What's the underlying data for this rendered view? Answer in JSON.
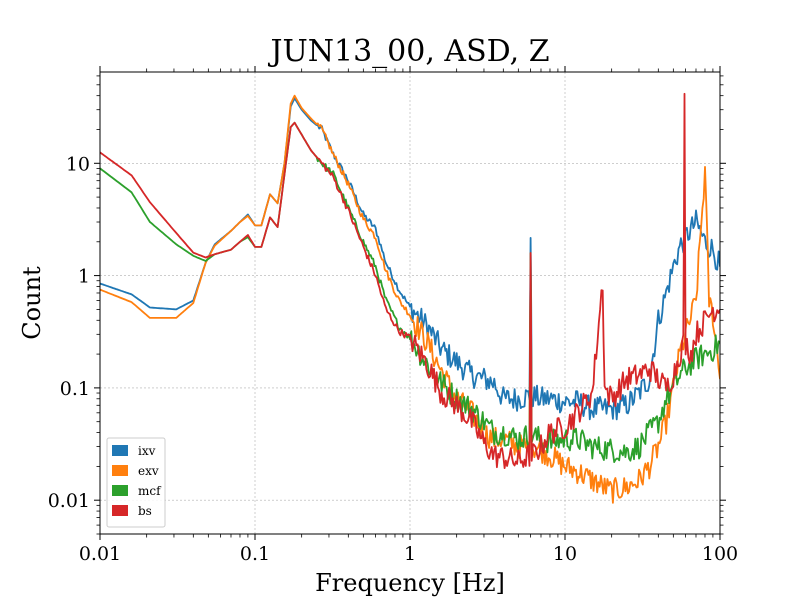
{
  "chart_data": {
    "type": "line",
    "title": "JUN13_00, ASD, Z",
    "xlabel": "Frequency [Hz]",
    "ylabel": "Count",
    "xscale": "log",
    "yscale": "log",
    "xlim": [
      0.01,
      100
    ],
    "ylim": [
      0.005,
      65
    ],
    "xticks": [
      {
        "value": 0.01,
        "label": "0.01"
      },
      {
        "value": 0.1,
        "label": "0.1"
      },
      {
        "value": 1,
        "label": "1"
      },
      {
        "value": 10,
        "label": "10"
      },
      {
        "value": 100,
        "label": "100"
      }
    ],
    "yticks": [
      {
        "value": 0.01,
        "label": "0.01"
      },
      {
        "value": 0.1,
        "label": "0.1"
      },
      {
        "value": 1,
        "label": "1"
      },
      {
        "value": 10,
        "label": "10"
      }
    ],
    "grid": true,
    "legend_position": "lower-left",
    "series": [
      {
        "name": "ixv",
        "color": "#1f77b4",
        "points": [
          [
            0.01,
            0.85
          ],
          [
            0.016,
            0.68
          ],
          [
            0.021,
            0.52
          ],
          [
            0.031,
            0.5
          ],
          [
            0.04,
            0.6
          ],
          [
            0.048,
            1.3
          ],
          [
            0.055,
            1.9
          ],
          [
            0.07,
            2.5
          ],
          [
            0.08,
            3.0
          ],
          [
            0.09,
            3.5
          ],
          [
            0.1,
            2.8
          ],
          [
            0.11,
            2.8
          ],
          [
            0.125,
            5.3
          ],
          [
            0.14,
            4.4
          ],
          [
            0.155,
            10
          ],
          [
            0.17,
            32
          ],
          [
            0.18,
            38
          ],
          [
            0.2,
            30
          ],
          [
            0.23,
            24
          ],
          [
            0.27,
            20
          ],
          [
            0.32,
            12
          ],
          [
            0.4,
            7
          ],
          [
            0.5,
            3.5
          ],
          [
            0.6,
            2.6
          ],
          [
            0.7,
            1.3
          ],
          [
            0.85,
            0.75
          ],
          [
            1.0,
            0.52
          ],
          [
            1.3,
            0.35
          ],
          [
            1.6,
            0.22
          ],
          [
            2.0,
            0.17
          ],
          [
            2.5,
            0.13
          ],
          [
            3.0,
            0.12
          ],
          [
            3.5,
            0.11
          ],
          [
            4.0,
            0.08
          ],
          [
            5.0,
            0.08
          ],
          [
            5.9,
            0.085
          ],
          [
            6.0,
            2.2
          ],
          [
            6.1,
            0.085
          ],
          [
            7.0,
            0.08
          ],
          [
            8.0,
            0.08
          ],
          [
            10,
            0.075
          ],
          [
            12,
            0.075
          ],
          [
            15,
            0.065
          ],
          [
            20,
            0.065
          ],
          [
            25,
            0.07
          ],
          [
            30,
            0.09
          ],
          [
            35,
            0.12
          ],
          [
            40,
            0.4
          ],
          [
            45,
            0.7
          ],
          [
            50,
            1.2
          ],
          [
            55,
            1.8
          ],
          [
            60,
            2.2
          ],
          [
            70,
            3.0
          ],
          [
            80,
            2.0
          ],
          [
            90,
            1.7
          ],
          [
            100,
            1.2
          ]
        ]
      },
      {
        "name": "exv",
        "color": "#ff7f0e",
        "points": [
          [
            0.01,
            0.75
          ],
          [
            0.016,
            0.58
          ],
          [
            0.021,
            0.42
          ],
          [
            0.031,
            0.42
          ],
          [
            0.04,
            0.57
          ],
          [
            0.048,
            1.3
          ],
          [
            0.055,
            1.85
          ],
          [
            0.07,
            2.5
          ],
          [
            0.08,
            3.0
          ],
          [
            0.09,
            3.4
          ],
          [
            0.1,
            2.8
          ],
          [
            0.11,
            2.8
          ],
          [
            0.125,
            5.3
          ],
          [
            0.14,
            4.4
          ],
          [
            0.155,
            10
          ],
          [
            0.17,
            34
          ],
          [
            0.18,
            40
          ],
          [
            0.2,
            31
          ],
          [
            0.23,
            25
          ],
          [
            0.27,
            20
          ],
          [
            0.32,
            12
          ],
          [
            0.4,
            6.5
          ],
          [
            0.5,
            3.2
          ],
          [
            0.6,
            2.2
          ],
          [
            0.7,
            1.1
          ],
          [
            0.85,
            0.6
          ],
          [
            1.0,
            0.45
          ],
          [
            1.3,
            0.25
          ],
          [
            1.6,
            0.14
          ],
          [
            2.0,
            0.08
          ],
          [
            2.5,
            0.06
          ],
          [
            3.0,
            0.04
          ],
          [
            3.5,
            0.035
          ],
          [
            4.0,
            0.035
          ],
          [
            5.0,
            0.03
          ],
          [
            5.9,
            0.03
          ],
          [
            6.0,
            1.3
          ],
          [
            6.1,
            0.03
          ],
          [
            7.0,
            0.028
          ],
          [
            8.0,
            0.025
          ],
          [
            10,
            0.02
          ],
          [
            12,
            0.018
          ],
          [
            15,
            0.015
          ],
          [
            18,
            0.013
          ],
          [
            20,
            0.012
          ],
          [
            25,
            0.013
          ],
          [
            30,
            0.015
          ],
          [
            35,
            0.02
          ],
          [
            40,
            0.03
          ],
          [
            45,
            0.05
          ],
          [
            50,
            0.1
          ],
          [
            55,
            0.2
          ],
          [
            60,
            0.3
          ],
          [
            70,
            0.6
          ],
          [
            80,
            8.5
          ],
          [
            85,
            0.6
          ],
          [
            90,
            0.45
          ],
          [
            100,
            0.12
          ]
        ]
      },
      {
        "name": "mcf",
        "color": "#2ca02c",
        "points": [
          [
            0.01,
            9.0
          ],
          [
            0.016,
            5.5
          ],
          [
            0.021,
            3.0
          ],
          [
            0.031,
            1.9
          ],
          [
            0.04,
            1.5
          ],
          [
            0.048,
            1.35
          ],
          [
            0.055,
            1.55
          ],
          [
            0.07,
            1.7
          ],
          [
            0.08,
            2.0
          ],
          [
            0.09,
            2.2
          ],
          [
            0.1,
            1.8
          ],
          [
            0.11,
            1.8
          ],
          [
            0.125,
            3.3
          ],
          [
            0.14,
            2.7
          ],
          [
            0.155,
            8
          ],
          [
            0.17,
            21
          ],
          [
            0.18,
            23
          ],
          [
            0.2,
            18
          ],
          [
            0.23,
            13
          ],
          [
            0.27,
            10
          ],
          [
            0.32,
            8
          ],
          [
            0.4,
            4
          ],
          [
            0.5,
            2.0
          ],
          [
            0.6,
            1.2
          ],
          [
            0.7,
            0.6
          ],
          [
            0.85,
            0.35
          ],
          [
            1.0,
            0.28
          ],
          [
            1.3,
            0.16
          ],
          [
            1.6,
            0.11
          ],
          [
            2.0,
            0.08
          ],
          [
            2.5,
            0.065
          ],
          [
            3.0,
            0.05
          ],
          [
            3.5,
            0.04
          ],
          [
            4.0,
            0.04
          ],
          [
            5.0,
            0.035
          ],
          [
            5.9,
            0.038
          ],
          [
            6.0,
            1.3
          ],
          [
            6.1,
            0.038
          ],
          [
            7.0,
            0.035
          ],
          [
            8.0,
            0.033
          ],
          [
            10,
            0.035
          ],
          [
            12,
            0.035
          ],
          [
            15,
            0.03
          ],
          [
            20,
            0.028
          ],
          [
            25,
            0.027
          ],
          [
            30,
            0.03
          ],
          [
            35,
            0.04
          ],
          [
            40,
            0.05
          ],
          [
            45,
            0.08
          ],
          [
            50,
            0.1
          ],
          [
            55,
            0.13
          ],
          [
            60,
            0.15
          ],
          [
            70,
            0.18
          ],
          [
            80,
            0.2
          ],
          [
            90,
            0.22
          ],
          [
            100,
            0.25
          ]
        ]
      },
      {
        "name": "bs",
        "color": "#d62728",
        "points": [
          [
            0.01,
            12.5
          ],
          [
            0.016,
            7.8
          ],
          [
            0.021,
            4.5
          ],
          [
            0.031,
            2.4
          ],
          [
            0.04,
            1.6
          ],
          [
            0.048,
            1.45
          ],
          [
            0.055,
            1.55
          ],
          [
            0.07,
            1.7
          ],
          [
            0.08,
            2.0
          ],
          [
            0.09,
            2.3
          ],
          [
            0.1,
            1.8
          ],
          [
            0.11,
            1.8
          ],
          [
            0.125,
            3.3
          ],
          [
            0.14,
            2.7
          ],
          [
            0.155,
            8
          ],
          [
            0.17,
            21
          ],
          [
            0.18,
            23
          ],
          [
            0.2,
            18
          ],
          [
            0.23,
            13
          ],
          [
            0.27,
            10
          ],
          [
            0.32,
            7.5
          ],
          [
            0.4,
            3.8
          ],
          [
            0.5,
            1.8
          ],
          [
            0.6,
            1.0
          ],
          [
            0.7,
            0.5
          ],
          [
            0.85,
            0.32
          ],
          [
            1.0,
            0.28
          ],
          [
            1.3,
            0.16
          ],
          [
            1.6,
            0.09
          ],
          [
            2.0,
            0.07
          ],
          [
            2.5,
            0.05
          ],
          [
            3.0,
            0.032
          ],
          [
            3.5,
            0.025
          ],
          [
            4.0,
            0.024
          ],
          [
            5.0,
            0.022
          ],
          [
            5.9,
            0.025
          ],
          [
            6.0,
            1.3
          ],
          [
            6.1,
            0.025
          ],
          [
            7.0,
            0.03
          ],
          [
            8.0,
            0.04
          ],
          [
            10,
            0.045
          ],
          [
            12,
            0.06
          ],
          [
            15,
            0.09
          ],
          [
            17.5,
            0.9
          ],
          [
            18,
            0.1
          ],
          [
            20,
            0.08
          ],
          [
            25,
            0.12
          ],
          [
            30,
            0.13
          ],
          [
            35,
            0.15
          ],
          [
            40,
            0.12
          ],
          [
            45,
            0.1
          ],
          [
            50,
            0.13
          ],
          [
            55,
            0.2
          ],
          [
            58,
            0.25
          ],
          [
            59,
            34
          ],
          [
            60,
            0.25
          ],
          [
            65,
            0.2
          ],
          [
            70,
            0.3
          ],
          [
            80,
            0.4
          ],
          [
            90,
            0.5
          ],
          [
            100,
            0.5
          ]
        ]
      }
    ]
  }
}
